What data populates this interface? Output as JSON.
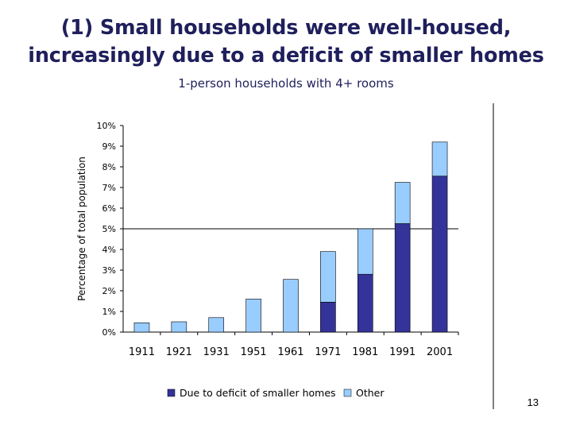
{
  "slide": {
    "title_line1": "(1) Small households were well-housed,",
    "title_line2": "increasingly due to a deficit of smaller homes",
    "page_number": "13"
  },
  "colors": {
    "deficit": "#333399",
    "other": "#99ccff",
    "title": "#1f1f5c"
  },
  "chart_data": {
    "type": "bar",
    "stacked": true,
    "title": "1-person households with 4+ rooms",
    "xlabel": "",
    "ylabel": "Percentage of total population",
    "ylim": [
      0,
      10
    ],
    "yticks": [
      "0%",
      "1%",
      "2%",
      "3%",
      "4%",
      "5%",
      "6%",
      "7%",
      "8%",
      "9%",
      "10%"
    ],
    "categories": [
      "1911",
      "1921",
      "1931",
      "1951",
      "1961",
      "1971",
      "1981",
      "1991",
      "2001"
    ],
    "series": [
      {
        "name": "Due to deficit of smaller homes",
        "values": [
          0,
          0,
          0,
          0,
          0,
          1.45,
          2.8,
          5.25,
          7.55
        ]
      },
      {
        "name": "Other",
        "values": [
          0.45,
          0.5,
          0.7,
          1.6,
          2.55,
          2.45,
          2.2,
          2.0,
          1.65
        ]
      }
    ],
    "reference_line": 5,
    "legend_position": "bottom",
    "grid": false
  }
}
